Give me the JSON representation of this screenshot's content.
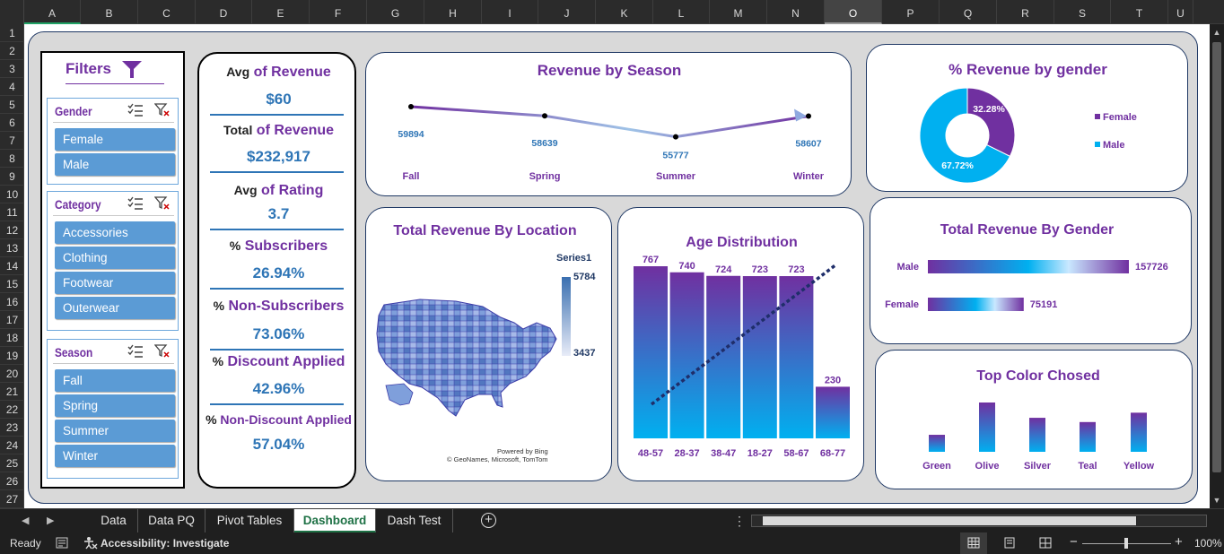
{
  "columns": [
    "A",
    "B",
    "C",
    "D",
    "E",
    "F",
    "G",
    "H",
    "I",
    "J",
    "K",
    "L",
    "M",
    "N",
    "O",
    "P",
    "Q",
    "R",
    "S",
    "T",
    "U"
  ],
  "rows": [
    "1",
    "2",
    "3",
    "4",
    "5",
    "6",
    "7",
    "8",
    "9",
    "10",
    "11",
    "12",
    "13",
    "14",
    "15",
    "16",
    "17",
    "18",
    "19",
    "20",
    "21",
    "22",
    "23",
    "24",
    "25",
    "26",
    "27"
  ],
  "selected_column": "O",
  "filters": {
    "title": "Filters",
    "gender": {
      "title": "Gender",
      "items": [
        "Female",
        "Male"
      ]
    },
    "category": {
      "title": "Category",
      "items": [
        "Accessories",
        "Clothing",
        "Footwear",
        "Outerwear"
      ]
    },
    "season": {
      "title": "Season",
      "items": [
        "Fall",
        "Spring",
        "Summer",
        "Winter"
      ]
    }
  },
  "kpis": [
    {
      "pre": "Avg",
      "label": " of Revenue",
      "value": "$60"
    },
    {
      "pre": "Total",
      "label": " of Revenue",
      "value": "$232,917"
    },
    {
      "pre": "Avg",
      "label": " of Rating",
      "value": "3.7"
    },
    {
      "pre": "%",
      "label": " Subscribers",
      "value": "26.94%"
    },
    {
      "pre": "%",
      "label": " Non-Subscribers",
      "value": "73.06%"
    },
    {
      "pre": "%",
      "label": " Discount Applied",
      "value": "42.96%"
    },
    {
      "pre": "%",
      "label": " Non-Discount Applied",
      "value": "57.04%"
    }
  ],
  "revenue_by_season": {
    "title": "Revenue by Season",
    "chart_data": {
      "type": "line",
      "categories": [
        "Fall",
        "Spring",
        "Summer",
        "Winter"
      ],
      "values": [
        59894,
        58639,
        55777,
        58607
      ]
    }
  },
  "gender_pct": {
    "title": "% Revenue by gender",
    "chart_data": {
      "type": "pie",
      "slices": [
        {
          "label": "Female",
          "value": 32.28,
          "text": "32.28%",
          "color": "#7030a0"
        },
        {
          "label": "Male",
          "value": 67.72,
          "text": "67.72%",
          "color": "#00b0f0"
        }
      ]
    }
  },
  "location": {
    "title": "Total Revenue By Location",
    "legend_title": "Series1",
    "legend_max": "5784",
    "legend_min": "3437",
    "credit1": "Powered by Bing",
    "credit2": "© GeoNames, Microsoft, TomTom"
  },
  "age": {
    "title": "Age Distribution",
    "chart_data": {
      "type": "bar",
      "categories": [
        "48-57",
        "28-37",
        "38-47",
        "18-27",
        "58-67",
        "68-77"
      ],
      "values": [
        767,
        740,
        724,
        723,
        723,
        230
      ],
      "ylim": [
        0,
        800
      ]
    }
  },
  "gender_revenue": {
    "title": "Total Revenue By Gender",
    "chart_data": {
      "type": "bar",
      "categories": [
        "Male",
        "Female"
      ],
      "values": [
        157726,
        75191
      ]
    }
  },
  "top_color": {
    "title": "Top Color Chosed",
    "chart_data": {
      "type": "bar",
      "categories": [
        "Green",
        "Olive",
        "Silver",
        "Teal",
        "Yellow"
      ],
      "values": [
        1,
        2.9,
        2,
        1.75,
        2.3
      ]
    }
  },
  "tabs": [
    "Data",
    "Data PQ",
    "Pivot Tables",
    "Dashboard",
    "Dash Test"
  ],
  "active_tab": "Dashboard",
  "status": {
    "ready": "Ready",
    "accessibility": "Accessibility: Investigate",
    "zoom": "100%"
  }
}
